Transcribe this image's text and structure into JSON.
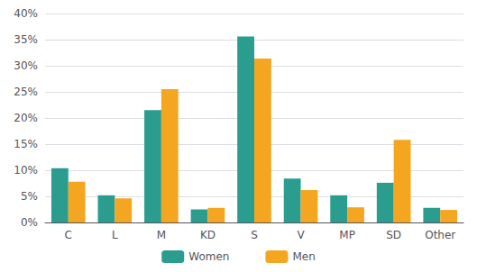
{
  "chart_data": {
    "type": "bar",
    "categories": [
      "C",
      "L",
      "M",
      "KD",
      "S",
      "V",
      "MP",
      "SD",
      "Other"
    ],
    "series": [
      {
        "name": "Women",
        "color": "#2a9d8f",
        "values": [
          10.4,
          5.2,
          21.5,
          2.5,
          35.6,
          8.4,
          5.2,
          7.6,
          2.8
        ]
      },
      {
        "name": "Men",
        "color": "#f4a621",
        "values": [
          7.8,
          4.6,
          25.5,
          2.8,
          31.4,
          6.2,
          2.9,
          15.8,
          2.4
        ]
      }
    ],
    "ylim": [
      0,
      40
    ],
    "yticks": [
      {
        "value": 0,
        "label": "0%"
      },
      {
        "value": 5,
        "label": "5%"
      },
      {
        "value": 10,
        "label": "10%"
      },
      {
        "value": 15,
        "label": "15%"
      },
      {
        "value": 20,
        "label": "20%"
      },
      {
        "value": 25,
        "label": "25%"
      },
      {
        "value": 30,
        "label": "30%"
      },
      {
        "value": 35,
        "label": "35%"
      },
      {
        "value": 40,
        "label": "40%"
      }
    ],
    "grid": true,
    "legend": "bottom"
  }
}
